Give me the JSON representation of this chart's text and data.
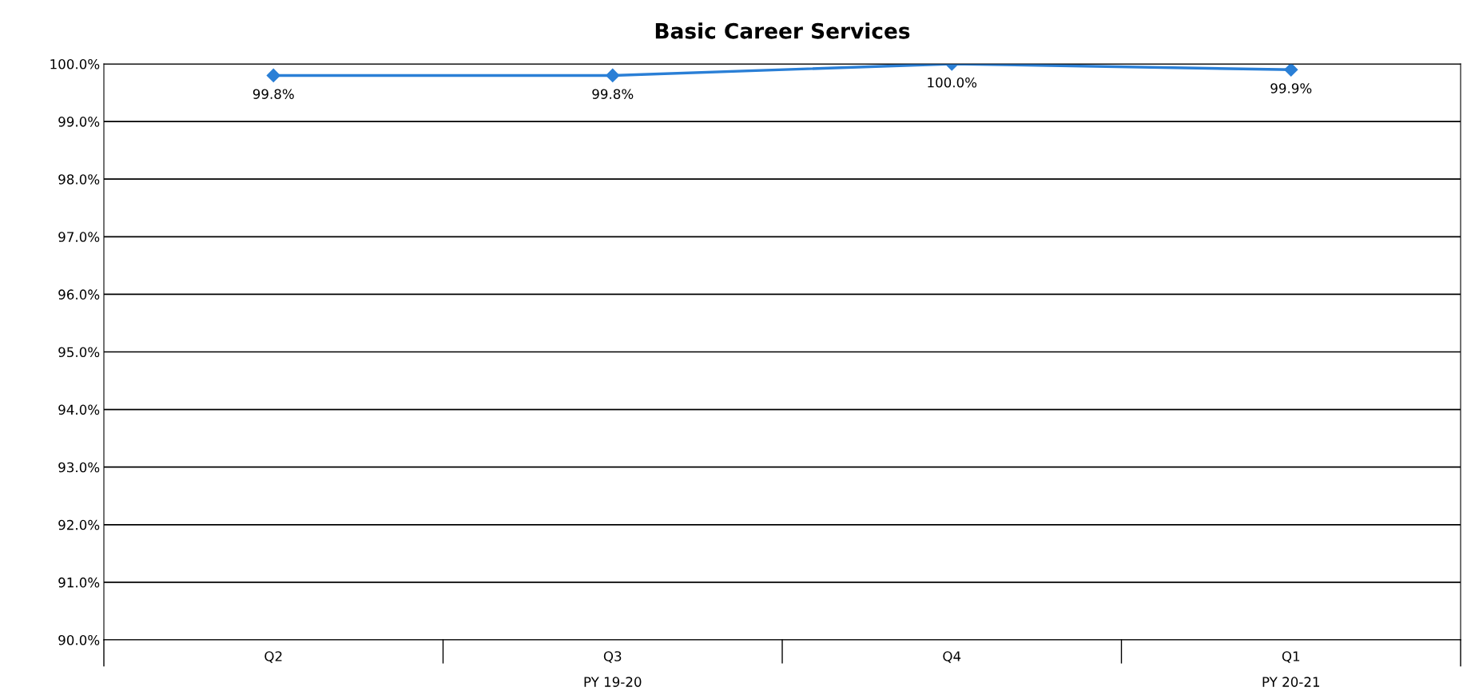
{
  "chart_data": {
    "type": "line",
    "title": "Basic Career Services",
    "categories": [
      "Q2",
      "Q3",
      "Q4",
      "Q1"
    ],
    "series": [
      {
        "color": "#2a7fd6",
        "values": [
          99.8,
          99.8,
          100.0,
          99.9
        ]
      }
    ],
    "value_labels": [
      "99.8%",
      "99.8%",
      "100.0%",
      "99.9%"
    ],
    "ylim": [
      90,
      100
    ],
    "yticks": [
      {
        "value": 90,
        "label": "90.0%"
      },
      {
        "value": 91,
        "label": "91.0%"
      },
      {
        "value": 92,
        "label": "92.0%"
      },
      {
        "value": 93,
        "label": "93.0%"
      },
      {
        "value": 94,
        "label": "94.0%"
      },
      {
        "value": 95,
        "label": "95.0%"
      },
      {
        "value": 96,
        "label": "96.0%"
      },
      {
        "value": 97,
        "label": "97.0%"
      },
      {
        "value": 98,
        "label": "98.0%"
      },
      {
        "value": 99,
        "label": "99.0%"
      },
      {
        "value": 100,
        "label": "100.0%"
      }
    ],
    "grid": "y",
    "marker": "diamond",
    "line_style": "solid",
    "annotations": [
      "PY 19-20",
      "PY 20-21"
    ]
  }
}
